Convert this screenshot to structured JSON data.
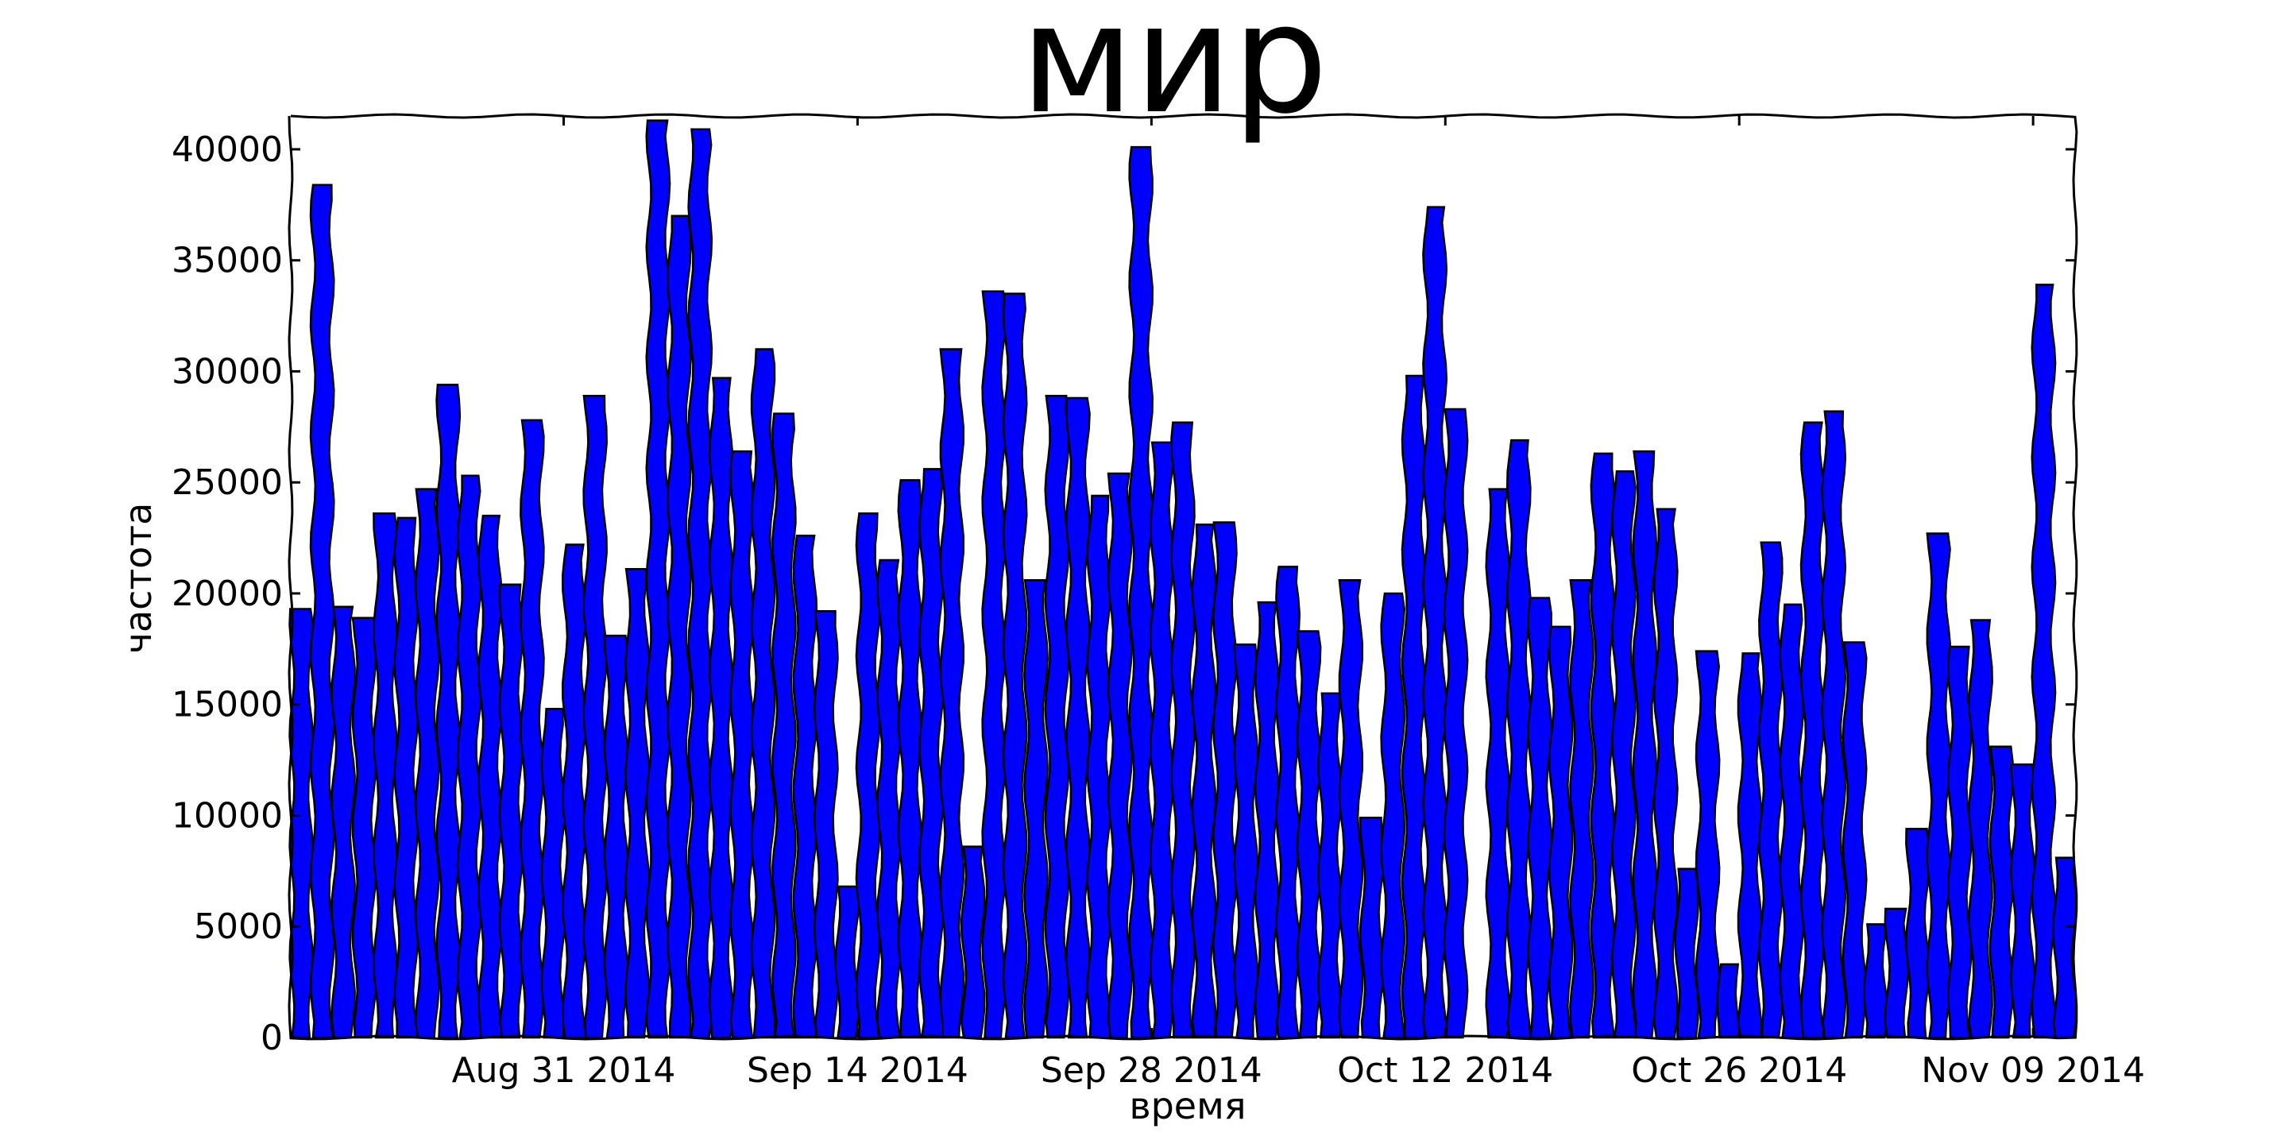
{
  "chart_data": {
    "type": "bar",
    "title": "мир",
    "xlabel": "время",
    "ylabel": "частота",
    "ylim": [
      0,
      41500
    ],
    "y_ticks": [
      0,
      5000,
      10000,
      15000,
      20000,
      25000,
      30000,
      35000,
      40000
    ],
    "x_ticks": [
      "Aug 31 2014",
      "Sep 14 2014",
      "Sep 28 2014",
      "Oct 12 2014",
      "Oct 26 2014",
      "Nov 09 2014"
    ],
    "x_tick_positions": [
      13,
      27,
      41,
      55,
      69,
      83
    ],
    "x_range": [
      0,
      85
    ],
    "bar_color": "#0000ff",
    "values": [
      19300,
      38400,
      19400,
      18900,
      23600,
      23400,
      24700,
      29400,
      25300,
      23500,
      20400,
      27800,
      14800,
      22200,
      28900,
      18100,
      21100,
      41300,
      37000,
      40900,
      29700,
      26400,
      31000,
      28100,
      22600,
      19200,
      6800,
      23600,
      21500,
      25100,
      25600,
      31000,
      8600,
      33600,
      33500,
      20600,
      28900,
      28800,
      24400,
      25400,
      40100,
      26800,
      27700,
      23100,
      23200,
      17700,
      19600,
      21200,
      18300,
      15500,
      20600,
      9900,
      20000,
      29800,
      37400,
      28300,
      0,
      24700,
      26900,
      19800,
      18500,
      20600,
      26300,
      25500,
      26400,
      23800,
      7600,
      17400,
      3300,
      17300,
      22300,
      19500,
      27700,
      28200,
      17800,
      5100,
      5800,
      9400,
      22700,
      17600,
      18800,
      13100,
      12300,
      33900,
      8100
    ]
  }
}
